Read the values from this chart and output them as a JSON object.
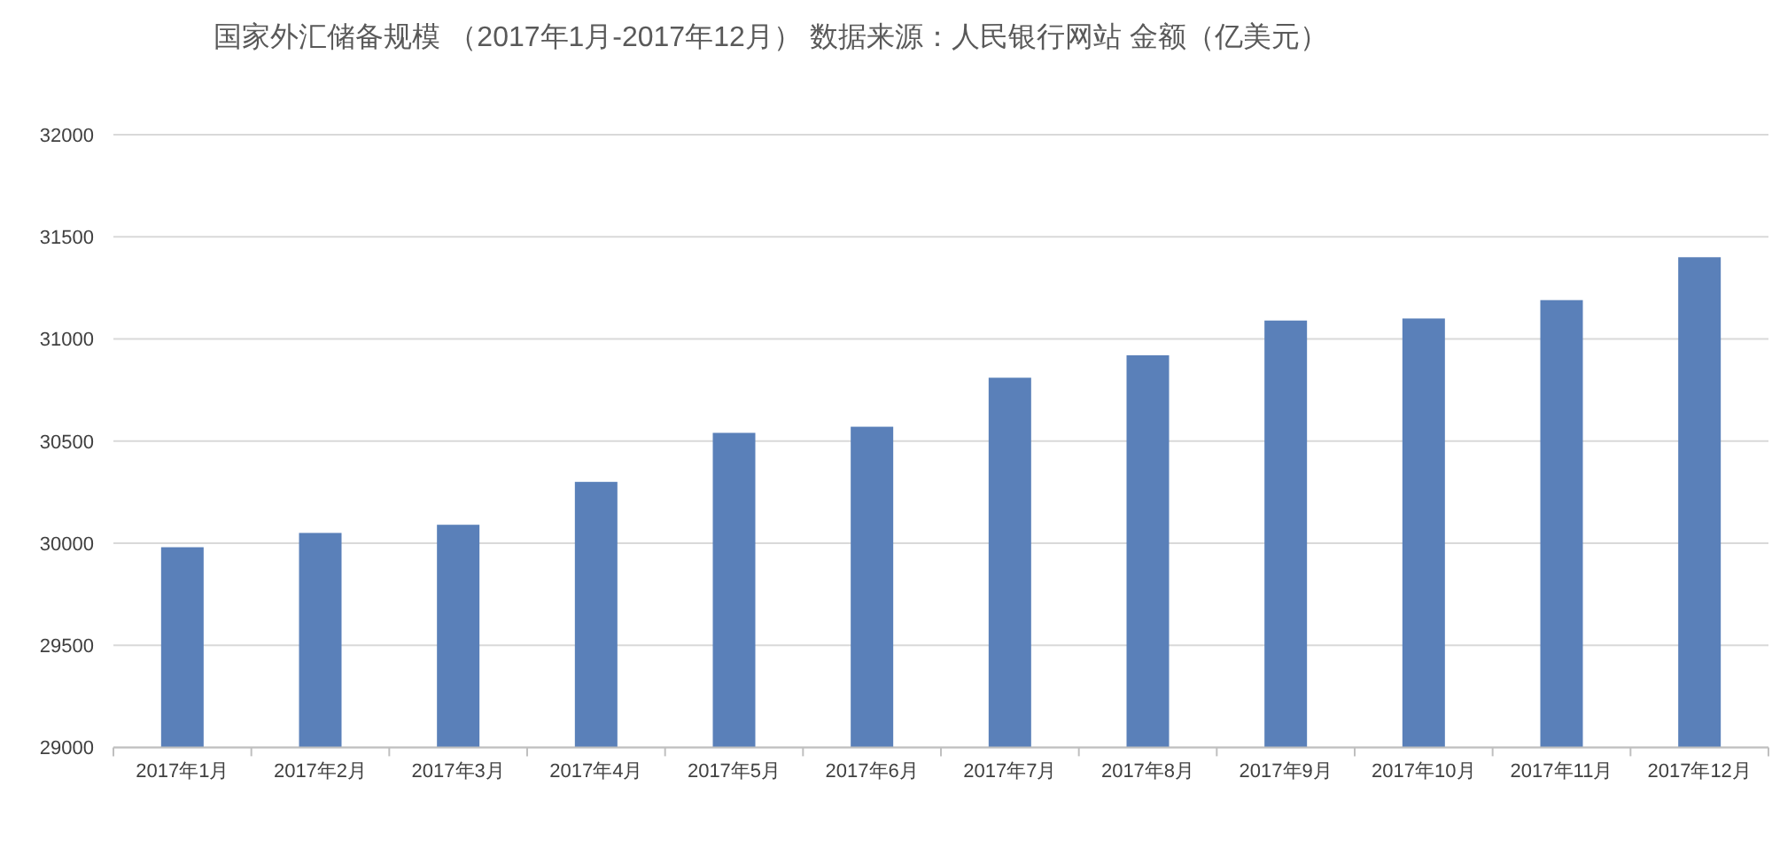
{
  "chart_data": {
    "type": "bar",
    "title": "国家外汇储备规模 （2017年1月-2017年12月） 数据来源：人民银行网站 金额（亿美元）",
    "categories": [
      "2017年1月",
      "2017年2月",
      "2017年3月",
      "2017年4月",
      "2017年5月",
      "2017年6月",
      "2017年7月",
      "2017年8月",
      "2017年9月",
      "2017年10月",
      "2017年11月",
      "2017年12月"
    ],
    "values": [
      29980,
      30050,
      30090,
      30300,
      30540,
      30570,
      30810,
      30920,
      31090,
      31100,
      31190,
      31400
    ],
    "color": "#5a80b9",
    "ylim": [
      29000,
      32000
    ],
    "yticks": [
      29000,
      29500,
      30000,
      30500,
      31000,
      31500,
      32000
    ],
    "grid": "y"
  }
}
